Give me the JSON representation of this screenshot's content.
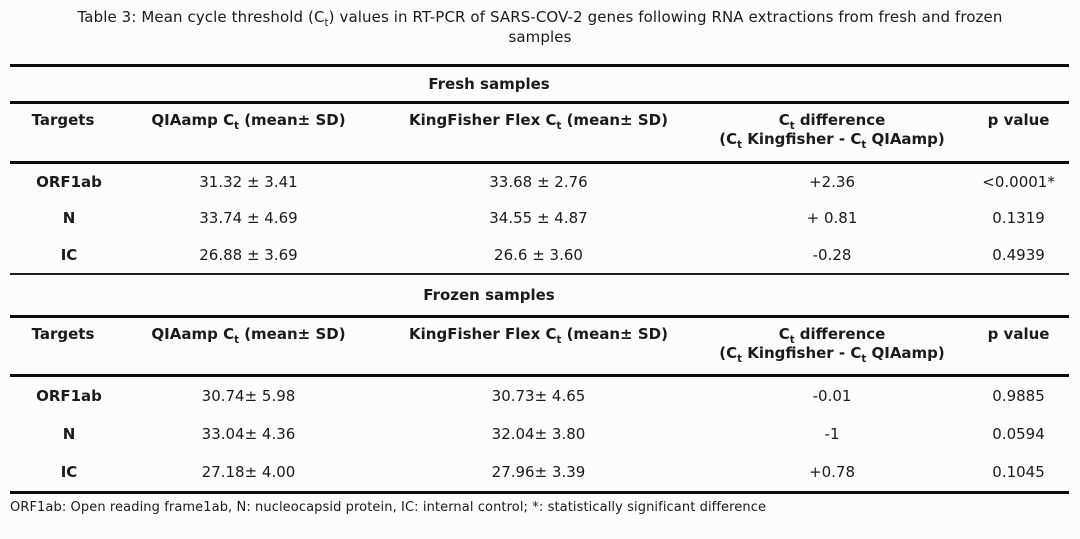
{
  "caption": {
    "line1": "Table 3: Mean cycle threshold (C~t~) values in RT-PCR of SARS-COV-2 genes following RNA extractions from fresh and frozen",
    "line2": "samples"
  },
  "columns": {
    "targets": "Targets",
    "qiaamp": "QIAamp C~t~ (mean± SD)",
    "kingfisher": "KingFisher Flex C~t~ (mean± SD)",
    "difference_line1": "C~t~ difference",
    "difference_line2": "(C~t~ Kingfisher - C~t~ QIAamp)",
    "p_value": "p value"
  },
  "fresh": {
    "section_title": "Fresh samples",
    "rows": [
      {
        "target": "ORF1ab",
        "qiaamp": "31.32 ± 3.41",
        "kingfisher": "33.68 ± 2.76",
        "difference": "+2.36",
        "p": "<0.0001*"
      },
      {
        "target": "N",
        "qiaamp": "33.74 ± 4.69",
        "kingfisher": "34.55 ± 4.87",
        "difference": "+ 0.81",
        "p": "0.1319"
      },
      {
        "target": "IC",
        "qiaamp": "26.88 ± 3.69",
        "kingfisher": "26.6 ± 3.60",
        "difference": "-0.28",
        "p": "0.4939"
      }
    ]
  },
  "frozen": {
    "section_title": "Frozen samples",
    "rows": [
      {
        "target": "ORF1ab",
        "qiaamp": "30.74± 5.98",
        "kingfisher": "30.73± 4.65",
        "difference": "-0.01",
        "p": "0.9885"
      },
      {
        "target": "N",
        "qiaamp": "33.04± 4.36",
        "kingfisher": "32.04± 3.80",
        "difference": "-1",
        "p": "0.0594"
      },
      {
        "target": "IC",
        "qiaamp": "27.18± 4.00",
        "kingfisher": "27.96± 3.39",
        "difference": "+0.78",
        "p": "0.1045"
      }
    ]
  },
  "footnote": "ORF1ab: Open reading frame1ab, N: nucleocapsid protein, IC: internal control; *: statistically significant difference"
}
